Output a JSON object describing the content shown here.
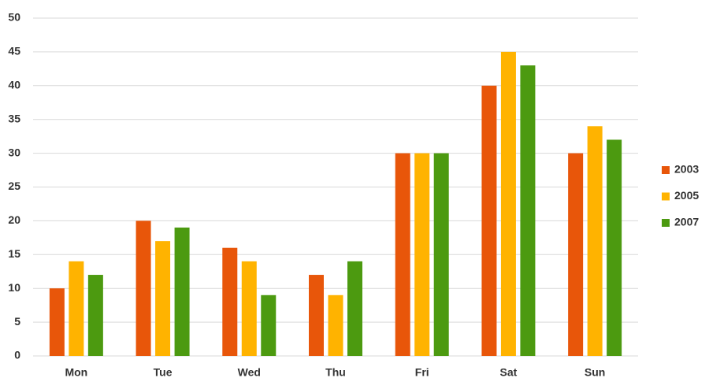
{
  "chart_data": {
    "type": "bar",
    "categories": [
      "Mon",
      "Tue",
      "Wed",
      "Thu",
      "Fri",
      "Sat",
      "Sun"
    ],
    "series": [
      {
        "name": "2003",
        "color": "#e8560a",
        "values": [
          10,
          20,
          16,
          12,
          30,
          40,
          30
        ]
      },
      {
        "name": "2005",
        "color": "#ffb300",
        "values": [
          14,
          17,
          14,
          9,
          30,
          45,
          34
        ]
      },
      {
        "name": "2007",
        "color": "#4c9a10",
        "values": [
          12,
          19,
          9,
          14,
          30,
          43,
          32
        ]
      }
    ],
    "ylim": [
      0,
      50
    ],
    "yticks": [
      0,
      5,
      10,
      15,
      20,
      25,
      30,
      35,
      40,
      45,
      50
    ],
    "grid": true,
    "legend": "right"
  }
}
